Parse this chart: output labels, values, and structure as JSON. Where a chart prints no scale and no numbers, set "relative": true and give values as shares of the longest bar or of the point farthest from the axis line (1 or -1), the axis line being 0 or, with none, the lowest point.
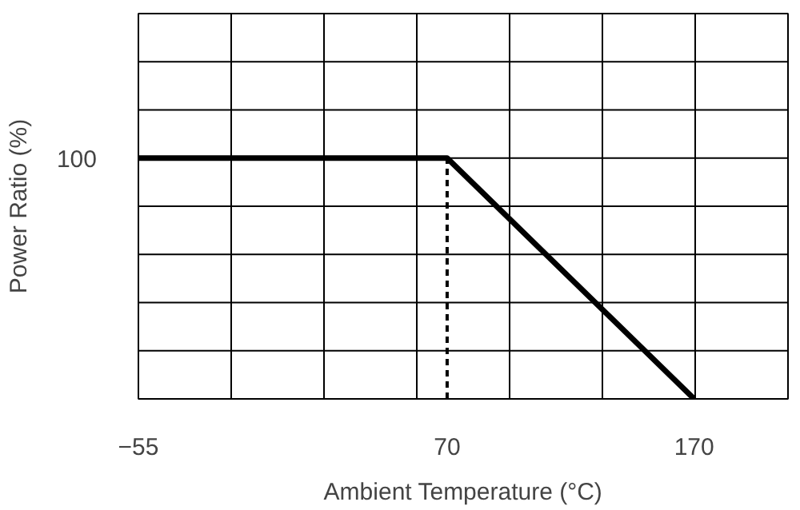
{
  "chart_data": {
    "type": "line",
    "xlabel": "Ambient Temperature (°C)",
    "ylabel": "Power Ratio (%)",
    "relative": true,
    "x": [
      -55,
      70,
      170
    ],
    "series": [
      {
        "color": "#000000",
        "values": [
          1,
          1,
          0
        ]
      }
    ],
    "xlim": [
      -55,
      208
    ],
    "xticks": [
      -55,
      70,
      170
    ],
    "ref_lines": [
      {
        "axis": "x",
        "value": 70,
        "line_style": "dashed",
        "color": "#000000"
      }
    ],
    "annotations": [
      "100"
    ],
    "grid": true,
    "line_style": "solid",
    "marker": "none"
  }
}
